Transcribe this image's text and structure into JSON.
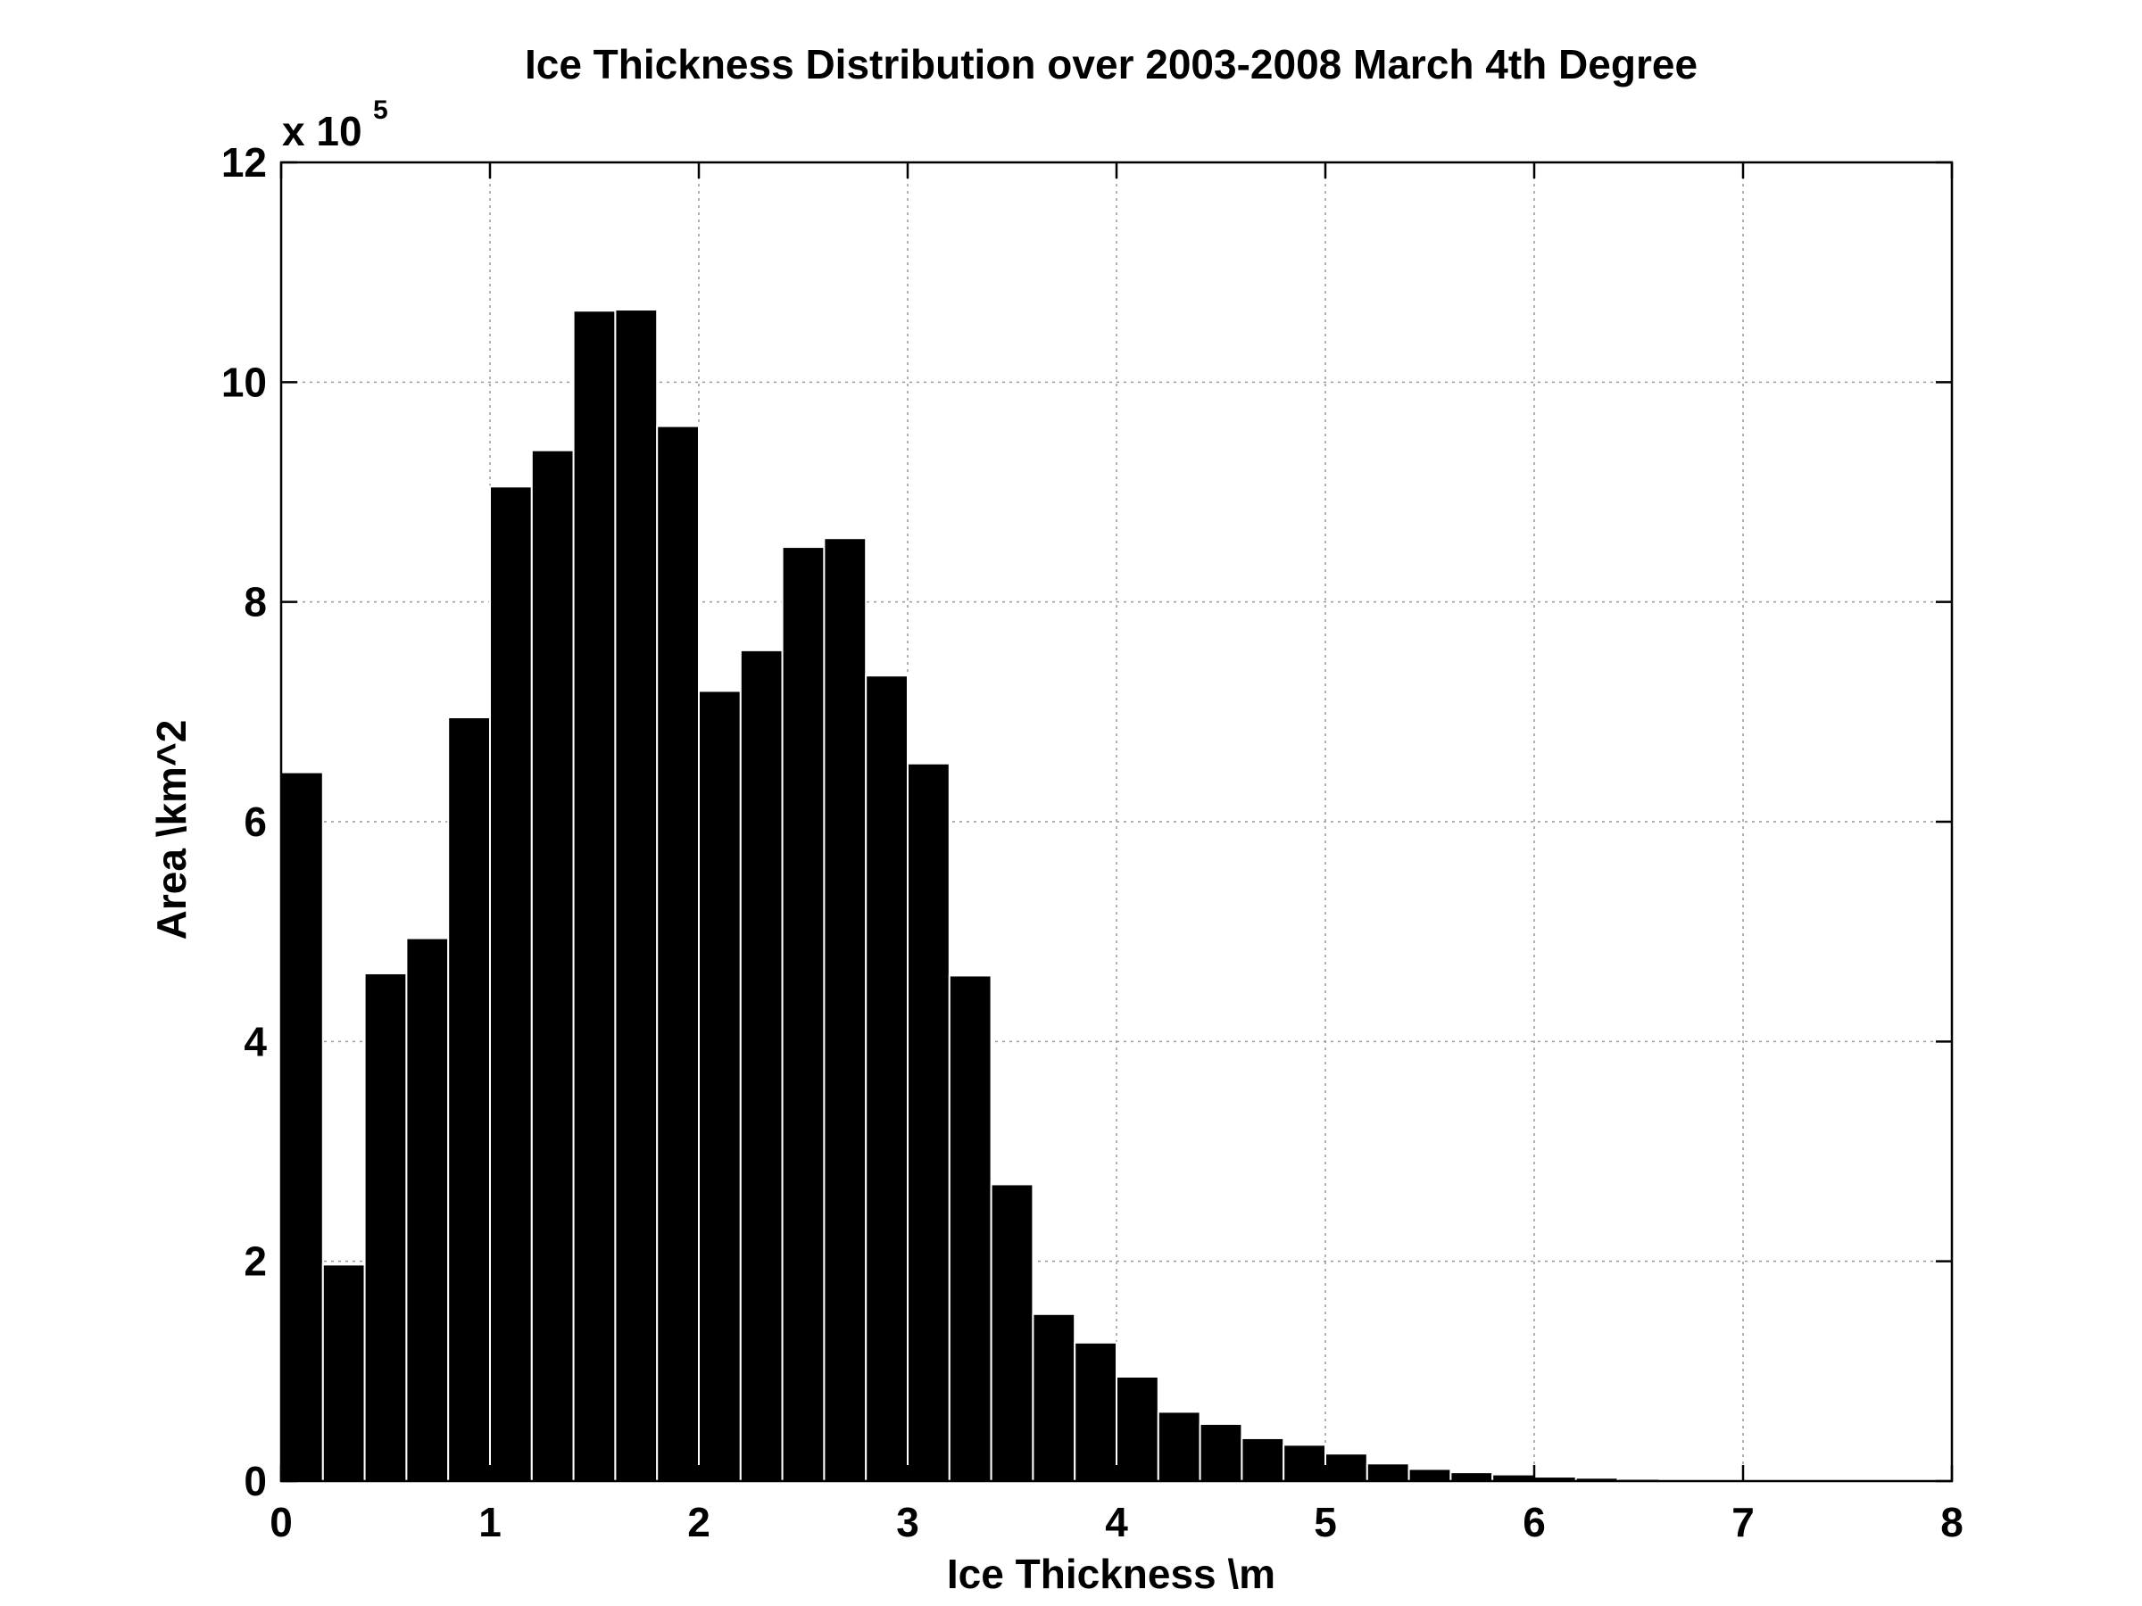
{
  "chart_data": {
    "type": "bar",
    "title": "Ice Thickness Distribution over 2003-2008 March 4th Degree",
    "xlabel": "Ice Thickness \\m",
    "ylabel": "Area \\km^2",
    "y_multiplier_base": "x 10",
    "y_multiplier_exponent": "5",
    "xlim": [
      0,
      8
    ],
    "ylim": [
      0,
      12
    ],
    "x_ticks": [
      "0",
      "1",
      "2",
      "3",
      "4",
      "5",
      "6",
      "7",
      "8"
    ],
    "y_ticks": [
      "0",
      "2",
      "4",
      "6",
      "8",
      "10",
      "12"
    ],
    "grid": true,
    "bar_color": "#000000",
    "bar_edge_color": "#ffffff",
    "bin_width": 0.2,
    "bin_starts": [
      0.0,
      0.2,
      0.4,
      0.6,
      0.8,
      1.0,
      1.2,
      1.4,
      1.6,
      1.8,
      2.0,
      2.2,
      2.4,
      2.6,
      2.8,
      3.0,
      3.2,
      3.4,
      3.6,
      3.8,
      4.0,
      4.2,
      4.4,
      4.6,
      4.8,
      5.0,
      5.2,
      5.4,
      5.6,
      5.8,
      6.0,
      6.2,
      6.4,
      6.6,
      6.8,
      7.0,
      7.2,
      7.4,
      7.6,
      7.8
    ],
    "values": [
      6.45,
      1.97,
      4.62,
      4.94,
      6.95,
      9.05,
      9.38,
      10.65,
      10.66,
      9.6,
      7.19,
      7.56,
      8.5,
      8.58,
      7.33,
      6.53,
      4.6,
      2.7,
      1.52,
      1.26,
      0.95,
      0.63,
      0.52,
      0.39,
      0.33,
      0.25,
      0.16,
      0.11,
      0.08,
      0.06,
      0.04,
      0.03,
      0.02,
      0.015,
      0.01,
      0.008,
      0.005,
      0.003,
      0.002,
      0.001
    ]
  }
}
